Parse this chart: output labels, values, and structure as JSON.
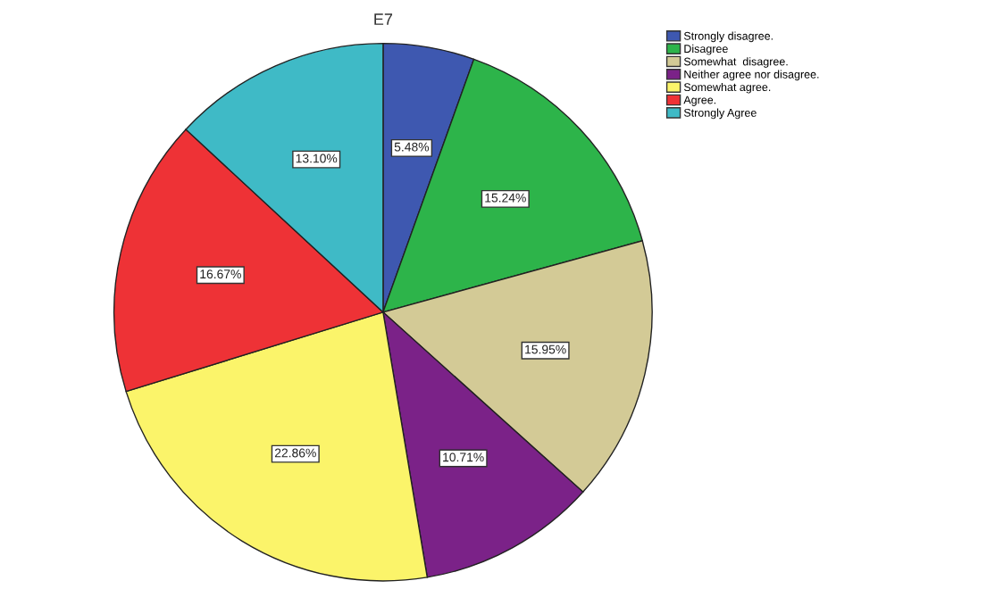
{
  "chart_data": {
    "type": "pie",
    "title": "E7",
    "categories": [
      "Strongly disagree.",
      "Disagree",
      "Somewhat  disagree.",
      "Neither agree nor disagree.",
      "Somewhat agree.",
      "Agree.",
      "Strongly Agree"
    ],
    "values": [
      5.48,
      15.24,
      15.95,
      10.71,
      22.86,
      16.67,
      13.1
    ],
    "value_labels": [
      "5.48%",
      "15.24%",
      "15.95%",
      "10.71%",
      "22.86%",
      "16.67%",
      "13.10%"
    ],
    "colors": [
      "#3e58b0",
      "#2db44a",
      "#d3ca96",
      "#7b2288",
      "#fbf46a",
      "#ee3236",
      "#3fbac6"
    ],
    "legend": "top right"
  }
}
